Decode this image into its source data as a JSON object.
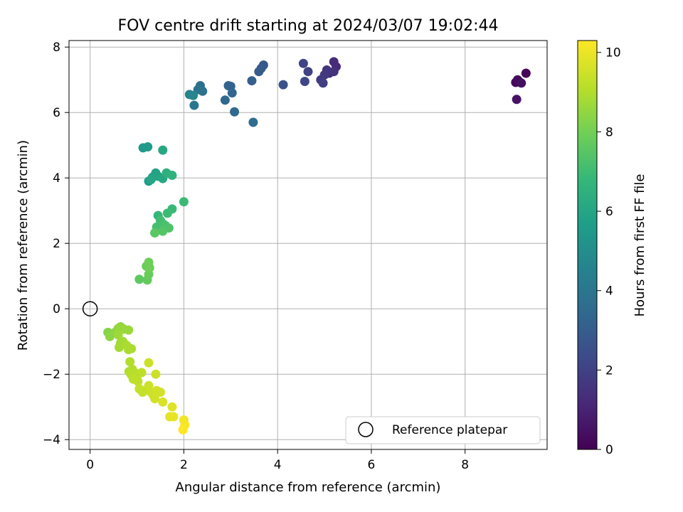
{
  "chart_data": {
    "type": "scatter",
    "title": "FOV centre drift starting at 2024/03/07 19:02:44",
    "xlabel": "Angular distance from reference (arcmin)",
    "ylabel": "Rotation from reference (arcmin)",
    "xlim": [
      -0.45,
      9.75
    ],
    "ylim": [
      -4.3,
      8.2
    ],
    "xticks": [
      "0",
      "2",
      "4",
      "6",
      "8"
    ],
    "yticks": [
      "−4",
      "−2",
      "0",
      "2",
      "4",
      "6",
      "8"
    ],
    "grid": true,
    "legend": {
      "placement": "lower-right",
      "entries": [
        "Reference platepar"
      ]
    },
    "reference_point": {
      "x": 0,
      "y": 0,
      "label": "Reference platepar"
    },
    "colorbar": {
      "label": "Hours from first FF file",
      "range": [
        0,
        10.3
      ],
      "ticks": [
        "0",
        "2",
        "4",
        "6",
        "8",
        "10"
      ],
      "colormap": [
        "#440154",
        "#482878",
        "#3e4989",
        "#31688e",
        "#26828e",
        "#1f9e89",
        "#35b779",
        "#6ece58",
        "#b5de2b",
        "#fde725"
      ]
    },
    "series": [
      {
        "points": [
          {
            "x": 9.15,
            "y": 6.95,
            "c": 0.05
          },
          {
            "x": 9.3,
            "y": 7.2,
            "c": 0.1
          },
          {
            "x": 9.08,
            "y": 6.92,
            "c": 0.2
          },
          {
            "x": 9.12,
            "y": 7.0,
            "c": 0.3
          },
          {
            "x": 9.2,
            "y": 6.9,
            "c": 0.4
          },
          {
            "x": 9.1,
            "y": 6.4,
            "c": 0.5
          },
          {
            "x": 5.25,
            "y": 7.4,
            "c": 1.2
          },
          {
            "x": 5.2,
            "y": 7.55,
            "c": 1.3
          },
          {
            "x": 5.1,
            "y": 7.2,
            "c": 1.4
          },
          {
            "x": 5.2,
            "y": 7.25,
            "c": 1.5
          },
          {
            "x": 5.05,
            "y": 7.3,
            "c": 1.6
          },
          {
            "x": 5.0,
            "y": 7.15,
            "c": 1.7
          },
          {
            "x": 4.92,
            "y": 7.0,
            "c": 1.8
          },
          {
            "x": 4.97,
            "y": 6.9,
            "c": 1.9
          },
          {
            "x": 4.65,
            "y": 7.25,
            "c": 2.0
          },
          {
            "x": 4.55,
            "y": 7.5,
            "c": 2.1
          },
          {
            "x": 4.58,
            "y": 6.95,
            "c": 2.2
          },
          {
            "x": 4.12,
            "y": 6.85,
            "c": 2.6
          },
          {
            "x": 3.7,
            "y": 7.45,
            "c": 2.8
          },
          {
            "x": 3.65,
            "y": 7.35,
            "c": 2.9
          },
          {
            "x": 3.6,
            "y": 7.25,
            "c": 3.0
          },
          {
            "x": 3.45,
            "y": 6.97,
            "c": 3.1
          },
          {
            "x": 3.0,
            "y": 6.8,
            "c": 3.2
          },
          {
            "x": 2.95,
            "y": 6.82,
            "c": 3.3
          },
          {
            "x": 3.03,
            "y": 6.6,
            "c": 3.4
          },
          {
            "x": 2.88,
            "y": 6.38,
            "c": 3.45
          },
          {
            "x": 3.08,
            "y": 6.02,
            "c": 3.5
          },
          {
            "x": 3.48,
            "y": 5.7,
            "c": 3.6
          },
          {
            "x": 2.35,
            "y": 6.82,
            "c": 3.8
          },
          {
            "x": 2.4,
            "y": 6.65,
            "c": 3.85
          },
          {
            "x": 2.3,
            "y": 6.7,
            "c": 3.9
          },
          {
            "x": 2.22,
            "y": 6.22,
            "c": 4.0
          },
          {
            "x": 2.12,
            "y": 6.55,
            "c": 4.6
          },
          {
            "x": 2.2,
            "y": 6.52,
            "c": 4.8
          },
          {
            "x": 1.13,
            "y": 4.92,
            "c": 5.5
          },
          {
            "x": 1.23,
            "y": 4.95,
            "c": 5.6
          },
          {
            "x": 1.55,
            "y": 4.85,
            "c": 6.2
          },
          {
            "x": 1.25,
            "y": 3.9,
            "c": 5.7
          },
          {
            "x": 1.33,
            "y": 4.02,
            "c": 5.8
          },
          {
            "x": 1.4,
            "y": 4.15,
            "c": 5.9
          },
          {
            "x": 1.45,
            "y": 4.05,
            "c": 6.0
          },
          {
            "x": 1.3,
            "y": 3.95,
            "c": 6.1
          },
          {
            "x": 1.55,
            "y": 3.98,
            "c": 6.2
          },
          {
            "x": 1.63,
            "y": 4.15,
            "c": 6.5
          },
          {
            "x": 1.75,
            "y": 4.08,
            "c": 6.6
          },
          {
            "x": 2.0,
            "y": 3.27,
            "c": 7.0
          },
          {
            "x": 1.75,
            "y": 3.05,
            "c": 6.9
          },
          {
            "x": 1.65,
            "y": 2.92,
            "c": 7.0
          },
          {
            "x": 1.45,
            "y": 2.85,
            "c": 6.8
          },
          {
            "x": 1.5,
            "y": 2.7,
            "c": 7.1
          },
          {
            "x": 1.55,
            "y": 2.6,
            "c": 7.2
          },
          {
            "x": 1.6,
            "y": 2.55,
            "c": 7.3
          },
          {
            "x": 1.42,
            "y": 2.5,
            "c": 7.2
          },
          {
            "x": 1.68,
            "y": 2.47,
            "c": 7.4
          },
          {
            "x": 1.55,
            "y": 2.37,
            "c": 7.5
          },
          {
            "x": 1.38,
            "y": 2.32,
            "c": 7.6
          },
          {
            "x": 1.05,
            "y": 0.9,
            "c": 7.7
          },
          {
            "x": 1.22,
            "y": 0.88,
            "c": 7.8
          },
          {
            "x": 1.25,
            "y": 1.05,
            "c": 7.9
          },
          {
            "x": 1.2,
            "y": 1.3,
            "c": 7.9
          },
          {
            "x": 1.27,
            "y": 1.25,
            "c": 8.0
          },
          {
            "x": 1.25,
            "y": 1.42,
            "c": 8.0
          },
          {
            "x": 0.38,
            "y": -0.72,
            "c": 8.4
          },
          {
            "x": 0.42,
            "y": -0.85,
            "c": 8.5
          },
          {
            "x": 0.55,
            "y": -0.7,
            "c": 8.5
          },
          {
            "x": 0.6,
            "y": -0.6,
            "c": 8.6
          },
          {
            "x": 0.65,
            "y": -0.55,
            "c": 8.6
          },
          {
            "x": 0.72,
            "y": -0.62,
            "c": 8.7
          },
          {
            "x": 0.82,
            "y": -0.65,
            "c": 8.7
          },
          {
            "x": 0.6,
            "y": -0.8,
            "c": 8.8
          },
          {
            "x": 0.65,
            "y": -1.05,
            "c": 8.8
          },
          {
            "x": 0.7,
            "y": -1.0,
            "c": 8.9
          },
          {
            "x": 0.62,
            "y": -1.18,
            "c": 8.9
          },
          {
            "x": 0.78,
            "y": -1.12,
            "c": 9.0
          },
          {
            "x": 0.82,
            "y": -1.25,
            "c": 9.0
          },
          {
            "x": 0.88,
            "y": -1.22,
            "c": 9.0
          },
          {
            "x": 0.85,
            "y": -1.62,
            "c": 9.1
          },
          {
            "x": 0.83,
            "y": -1.92,
            "c": 9.1
          },
          {
            "x": 0.9,
            "y": -1.85,
            "c": 9.1
          },
          {
            "x": 0.88,
            "y": -2.02,
            "c": 9.2
          },
          {
            "x": 0.95,
            "y": -1.95,
            "c": 9.2
          },
          {
            "x": 1.0,
            "y": -2.05,
            "c": 9.2
          },
          {
            "x": 0.92,
            "y": -2.15,
            "c": 9.3
          },
          {
            "x": 1.02,
            "y": -2.22,
            "c": 9.3
          },
          {
            "x": 1.1,
            "y": -1.95,
            "c": 9.3
          },
          {
            "x": 1.05,
            "y": -2.45,
            "c": 9.4
          },
          {
            "x": 1.12,
            "y": -2.55,
            "c": 9.4
          },
          {
            "x": 1.2,
            "y": -2.48,
            "c": 9.4
          },
          {
            "x": 1.25,
            "y": -2.35,
            "c": 9.5
          },
          {
            "x": 1.3,
            "y": -2.55,
            "c": 9.5
          },
          {
            "x": 1.35,
            "y": -2.65,
            "c": 9.5
          },
          {
            "x": 1.38,
            "y": -2.75,
            "c": 9.6
          },
          {
            "x": 1.42,
            "y": -2.5,
            "c": 9.6
          },
          {
            "x": 1.5,
            "y": -2.55,
            "c": 9.6
          },
          {
            "x": 1.4,
            "y": -2.0,
            "c": 9.5
          },
          {
            "x": 1.25,
            "y": -1.65,
            "c": 9.5
          },
          {
            "x": 1.55,
            "y": -2.85,
            "c": 9.7
          },
          {
            "x": 1.75,
            "y": -3.0,
            "c": 9.8
          },
          {
            "x": 1.7,
            "y": -3.3,
            "c": 9.9
          },
          {
            "x": 1.78,
            "y": -3.3,
            "c": 9.95
          },
          {
            "x": 2.0,
            "y": -3.4,
            "c": 10.1
          },
          {
            "x": 2.02,
            "y": -3.55,
            "c": 10.2
          },
          {
            "x": 1.98,
            "y": -3.7,
            "c": 10.3
          }
        ]
      }
    ]
  }
}
